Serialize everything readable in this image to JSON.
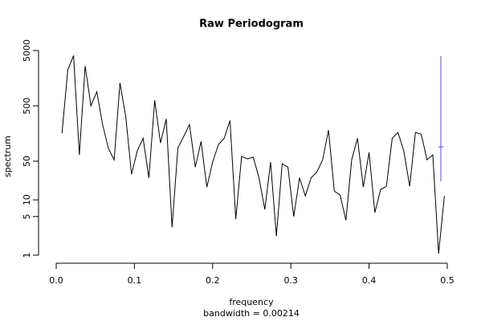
{
  "chart_data": {
    "type": "line",
    "title": "Raw Periodogram",
    "xlabel": "frequency",
    "subtitle": "bandwidth = 0.00214",
    "ylabel": "spectrum",
    "log_y": true,
    "color": "#000000",
    "x": [
      0.0074,
      0.0148,
      0.0222,
      0.0296,
      0.037,
      0.0444,
      0.0519,
      0.0593,
      0.0667,
      0.0741,
      0.0815,
      0.0889,
      0.0963,
      0.1037,
      0.1111,
      0.1185,
      0.1259,
      0.1333,
      0.1407,
      0.1481,
      0.1556,
      0.163,
      0.1704,
      0.1778,
      0.1852,
      0.1926,
      0.2,
      0.2074,
      0.2148,
      0.2222,
      0.2296,
      0.237,
      0.2444,
      0.2519,
      0.2593,
      0.2667,
      0.2741,
      0.2815,
      0.2889,
      0.2963,
      0.3037,
      0.3111,
      0.3185,
      0.3259,
      0.3333,
      0.3407,
      0.3481,
      0.3556,
      0.363,
      0.3704,
      0.3778,
      0.3852,
      0.3926,
      0.4,
      0.4074,
      0.4148,
      0.4222,
      0.4296,
      0.437,
      0.4444,
      0.4519,
      0.4593,
      0.4667,
      0.4741,
      0.4815,
      0.4889,
      0.4963
    ],
    "values": [
      160,
      2230,
      4060,
      65,
      2630,
      500,
      900,
      230,
      85,
      53,
      1300,
      320,
      29,
      77,
      130,
      25,
      630,
      107,
      290,
      3.2,
      87,
      140,
      230,
      39,
      114,
      17,
      48,
      100,
      130,
      272,
      4.5,
      61,
      55,
      59,
      25,
      6.7,
      48,
      2.2,
      45,
      39,
      5.0,
      25,
      11.8,
      25,
      32,
      53,
      182,
      14.4,
      12.2,
      4.3,
      53,
      130,
      17,
      72,
      5.9,
      15.4,
      17.6,
      130,
      165,
      77,
      17.6,
      165,
      154,
      53,
      65,
      1.07,
      11.8
    ],
    "xlim": [
      0,
      0.5
    ],
    "xticks": [
      {
        "value": 0,
        "label": "0.0"
      },
      0.1,
      0.2,
      0.3,
      0.4,
      0.5
    ],
    "ylim": [
      1,
      5000
    ],
    "yticks": [
      1,
      5,
      10,
      50,
      500,
      5000
    ]
  }
}
